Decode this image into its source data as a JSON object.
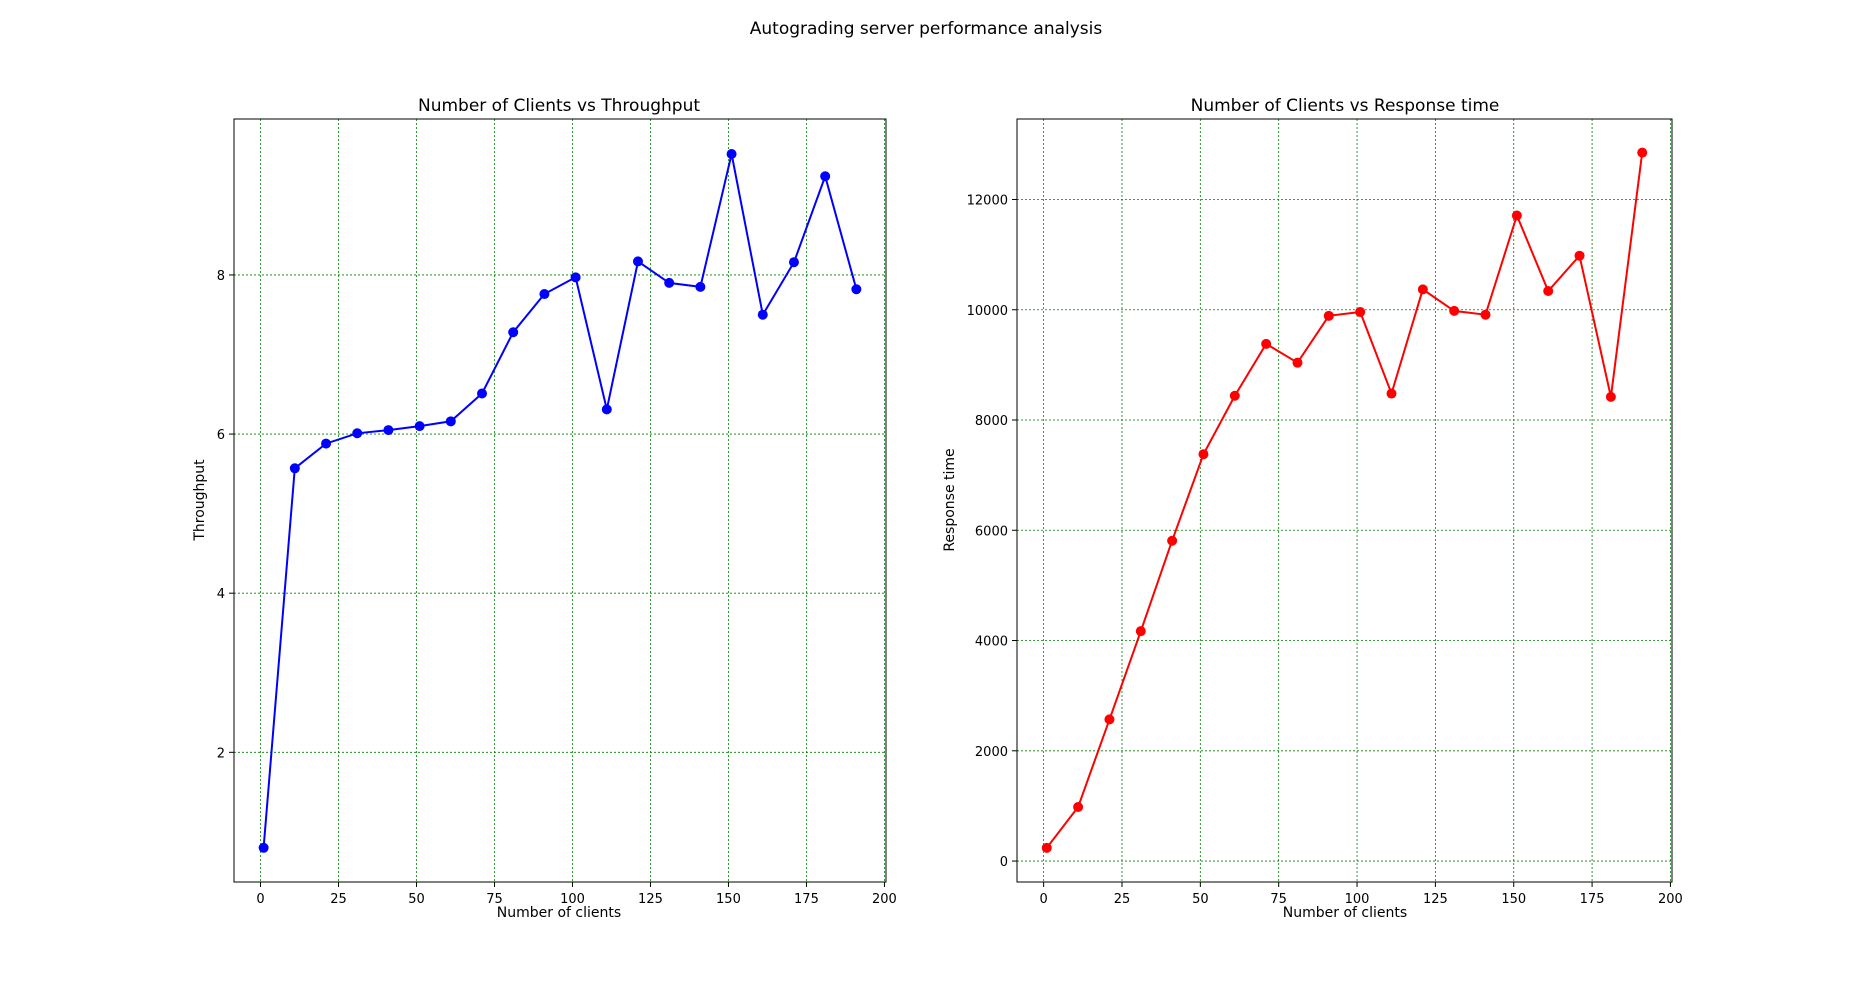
{
  "suptitle": "Autograding server performance analysis",
  "chart_data": [
    {
      "type": "line",
      "title": "Number of Clients vs Throughput",
      "xlabel": "Number of clients",
      "ylabel": "Throughput",
      "xlim": [
        -8.5,
        200.5
      ],
      "ylim": [
        0.37,
        9.96
      ],
      "xticks": [
        0,
        25,
        50,
        75,
        100,
        125,
        150,
        175,
        200
      ],
      "yticks": [
        2,
        4,
        6,
        8
      ],
      "grid": true,
      "grid_color": "#008000",
      "series": [
        {
          "name": "Throughput",
          "color": "#0000ff",
          "marker": "circle",
          "x": [
            1,
            11,
            21,
            31,
            41,
            51,
            61,
            71,
            81,
            91,
            101,
            111,
            121,
            131,
            141,
            151,
            161,
            171,
            181,
            191
          ],
          "y": [
            0.8,
            5.57,
            5.88,
            6.01,
            6.05,
            6.1,
            6.16,
            6.51,
            7.28,
            7.76,
            7.97,
            6.31,
            8.17,
            7.9,
            7.85,
            9.52,
            7.5,
            8.16,
            9.24,
            7.82
          ]
        }
      ]
    },
    {
      "type": "line",
      "title": "Number of Clients vs Response time",
      "xlabel": "Number of clients",
      "ylabel": "Response time",
      "xlim": [
        -8.5,
        200.5
      ],
      "ylim": [
        -380,
        13460
      ],
      "xticks": [
        0,
        25,
        50,
        75,
        100,
        125,
        150,
        175,
        200
      ],
      "yticks": [
        0,
        2000,
        4000,
        6000,
        8000,
        10000,
        12000
      ],
      "grid": true,
      "grid_color": "#008000",
      "series": [
        {
          "name": "Response time",
          "color": "#ff0000",
          "marker": "circle",
          "x": [
            1,
            11,
            21,
            31,
            41,
            51,
            61,
            71,
            81,
            91,
            101,
            111,
            121,
            131,
            141,
            151,
            161,
            171,
            181,
            191
          ],
          "y": [
            240,
            980,
            2570,
            4170,
            5810,
            7380,
            8440,
            9380,
            9040,
            9890,
            9960,
            8480,
            10370,
            9980,
            9910,
            11710,
            10340,
            10980,
            8420,
            12850
          ]
        }
      ]
    }
  ]
}
